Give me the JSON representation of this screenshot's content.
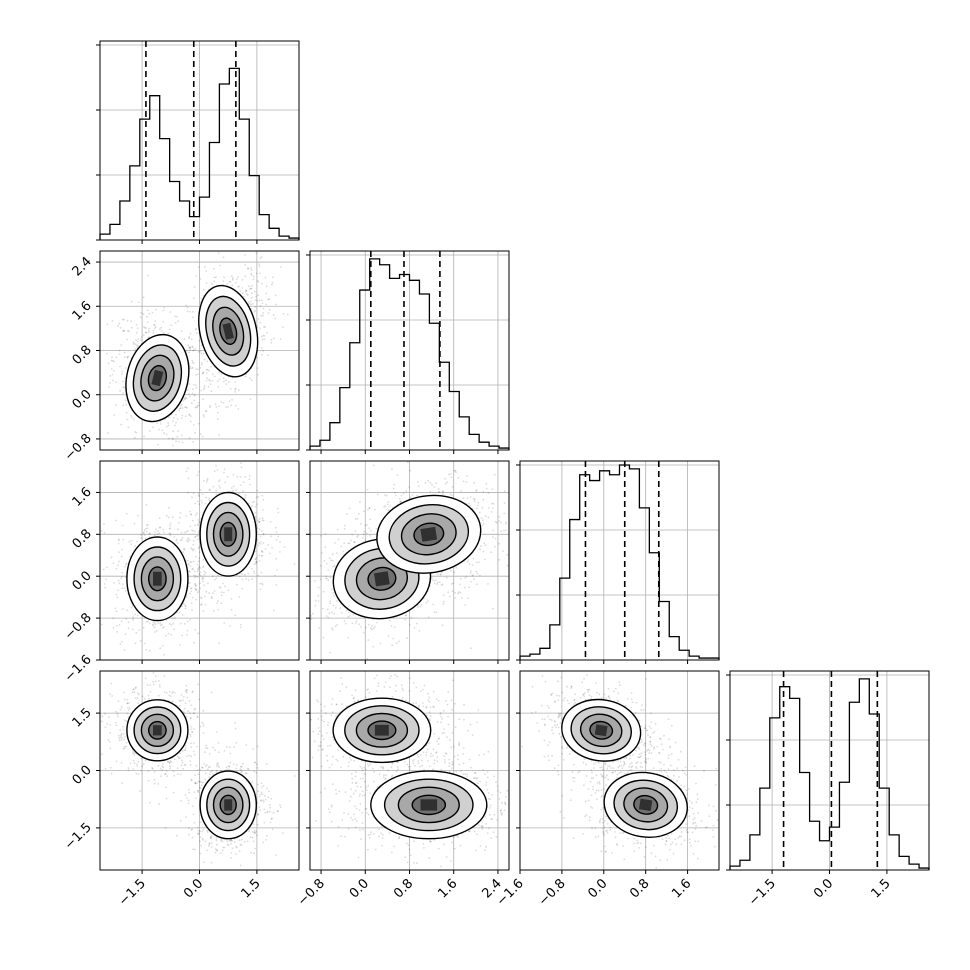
{
  "chart_data": {
    "type": "corner",
    "parameters": 4,
    "grid": true,
    "axes": [
      {
        "range": [
          -2.6,
          2.6
        ],
        "ticks": [
          -1.5,
          0.0,
          1.5
        ],
        "tick_labels": [
          "−1.5",
          "0.0",
          "1.5"
        ]
      },
      {
        "range": [
          -1.0,
          2.6
        ],
        "ticks": [
          -0.8,
          0.0,
          0.8,
          1.6,
          2.4
        ],
        "tick_labels": [
          "−0.8",
          "0.0",
          "0.8",
          "1.6",
          "2.4"
        ]
      },
      {
        "range": [
          -1.6,
          2.2
        ],
        "ticks": [
          -1.6,
          -0.8,
          0.0,
          0.8,
          1.6
        ],
        "tick_labels": [
          "−1.6",
          "−0.8",
          "0.0",
          "0.8",
          "1.6"
        ]
      },
      {
        "range": [
          -2.6,
          2.6
        ],
        "ticks": [
          -1.5,
          0.0,
          1.5
        ],
        "tick_labels": [
          "−1.5",
          "0.0",
          "1.5"
        ]
      }
    ],
    "quantiles": [
      [
        -1.4,
        -0.15,
        0.95
      ],
      [
        0.1,
        0.7,
        1.35
      ],
      [
        -0.35,
        0.4,
        1.05
      ],
      [
        -1.2,
        0.05,
        1.25
      ]
    ],
    "histograms": [
      [
        0.03,
        0.08,
        0.2,
        0.38,
        0.62,
        0.74,
        0.52,
        0.3,
        0.2,
        0.12,
        0.22,
        0.5,
        0.8,
        0.88,
        0.62,
        0.33,
        0.13,
        0.06,
        0.02,
        0.01
      ],
      [
        0.02,
        0.05,
        0.14,
        0.32,
        0.55,
        0.82,
        0.98,
        0.95,
        0.88,
        0.9,
        0.87,
        0.8,
        0.65,
        0.45,
        0.3,
        0.17,
        0.08,
        0.04,
        0.02,
        0.01
      ],
      [
        0.02,
        0.03,
        0.06,
        0.18,
        0.42,
        0.72,
        0.95,
        0.92,
        0.97,
        0.95,
        1.0,
        0.98,
        0.78,
        0.55,
        0.3,
        0.12,
        0.05,
        0.02,
        0.01,
        0.01
      ],
      [
        0.02,
        0.05,
        0.18,
        0.42,
        0.78,
        0.94,
        0.88,
        0.5,
        0.25,
        0.15,
        0.22,
        0.45,
        0.86,
        0.98,
        0.8,
        0.42,
        0.18,
        0.07,
        0.03,
        0.01
      ]
    ],
    "modes": [
      [
        {
          "w": 0.5,
          "m": [
            -1.1,
            0.3,
            -0.05,
            1.05
          ],
          "s": [
            0.38,
            0.38,
            0.38,
            0.38
          ]
        },
        {
          "w": 0.5,
          "m": [
            0.75,
            1.15,
            0.8,
            -0.9
          ],
          "s": [
            0.35,
            0.38,
            0.35,
            0.38
          ]
        }
      ]
    ],
    "joint_modes": {
      "1-0": [
        {
          "cx": -1.1,
          "cy": 0.3,
          "sx": 0.38,
          "sy": 0.38,
          "r": -0.3
        },
        {
          "cx": 0.75,
          "cy": 1.15,
          "sx": 0.35,
          "sy": 0.4,
          "r": 0.3
        }
      ],
      "2-0": [
        {
          "cx": -1.1,
          "cy": -0.05,
          "sx": 0.38,
          "sy": 0.38,
          "r": 0.0
        },
        {
          "cx": 0.75,
          "cy": 0.8,
          "sx": 0.35,
          "sy": 0.38,
          "r": 0.0
        }
      ],
      "2-1": [
        {
          "cx": 0.3,
          "cy": -0.05,
          "sx": 0.42,
          "sy": 0.36,
          "r": 0.2
        },
        {
          "cx": 1.15,
          "cy": 0.8,
          "sx": 0.45,
          "sy": 0.35,
          "r": 0.2
        }
      ],
      "3-0": [
        {
          "cx": -1.1,
          "cy": 1.05,
          "sx": 0.38,
          "sy": 0.38,
          "r": 0.0
        },
        {
          "cx": 0.75,
          "cy": -0.9,
          "sx": 0.35,
          "sy": 0.42,
          "r": 0.0
        }
      ],
      "3-1": [
        {
          "cx": 0.3,
          "cy": 1.05,
          "sx": 0.42,
          "sy": 0.4,
          "r": 0.0
        },
        {
          "cx": 1.15,
          "cy": -0.9,
          "sx": 0.5,
          "sy": 0.42,
          "r": 0.0
        }
      ],
      "3-2": [
        {
          "cx": -0.05,
          "cy": 1.05,
          "sx": 0.36,
          "sy": 0.38,
          "r": -0.2
        },
        {
          "cx": 0.8,
          "cy": -0.9,
          "sx": 0.38,
          "sy": 0.4,
          "r": -0.2
        }
      ]
    }
  }
}
